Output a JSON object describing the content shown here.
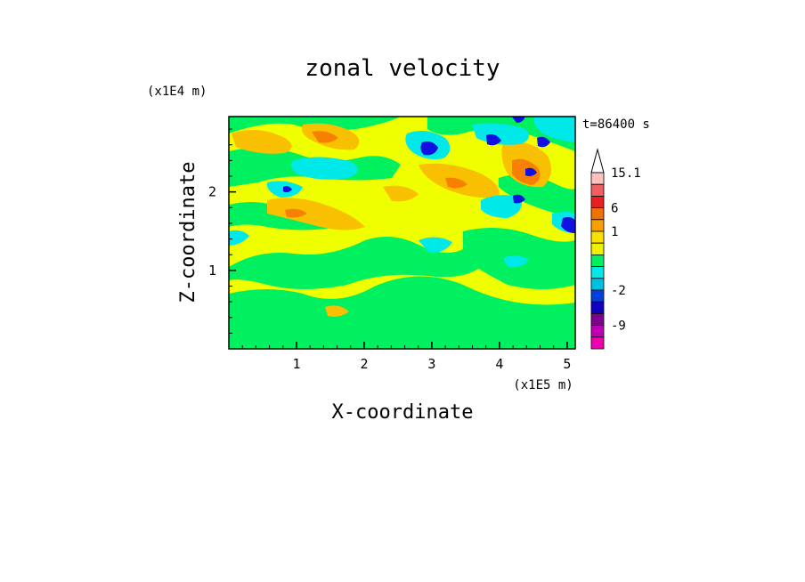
{
  "chart_data": {
    "type": "heatmap",
    "title": "zonal velocity",
    "xlabel": "X-coordinate",
    "ylabel": "Z-coordinate",
    "x_scale_label": "(x1E5 m)",
    "y_scale_label": "(x1E4 m)",
    "time_label": "t=86400 s",
    "x_ticks": [
      "1",
      "2",
      "3",
      "4",
      "5"
    ],
    "y_ticks": [
      "1",
      "2"
    ],
    "xlim": [
      0,
      5.12
    ],
    "ylim": [
      0,
      2.96
    ],
    "colorbar": {
      "labels": [
        "15.1",
        "6",
        "1",
        "-2",
        "-9"
      ],
      "levels_top_to_bottom": [
        15.1,
        12,
        9,
        6,
        3,
        1,
        0.5,
        0,
        -0.5,
        -1,
        -2,
        -4,
        -6,
        -9,
        -12
      ],
      "colors": [
        "#ffc0c0",
        "#f06060",
        "#e82020",
        "#f07000",
        "#f8a000",
        "#f8e000",
        "#f0f000",
        "#00f060",
        "#00e8e8",
        "#00c0e0",
        "#0040e0",
        "#1000c0",
        "#800090",
        "#c000b0",
        "#f000b0"
      ]
    },
    "field_colors": {
      "weak_positive": "#f0ff00",
      "neutral": "#00f060",
      "moderate_positive": "#f8c000",
      "strong_positive": "#f88000",
      "weak_negative": "#00e8e8",
      "strong_negative": "#1010e0"
    }
  }
}
